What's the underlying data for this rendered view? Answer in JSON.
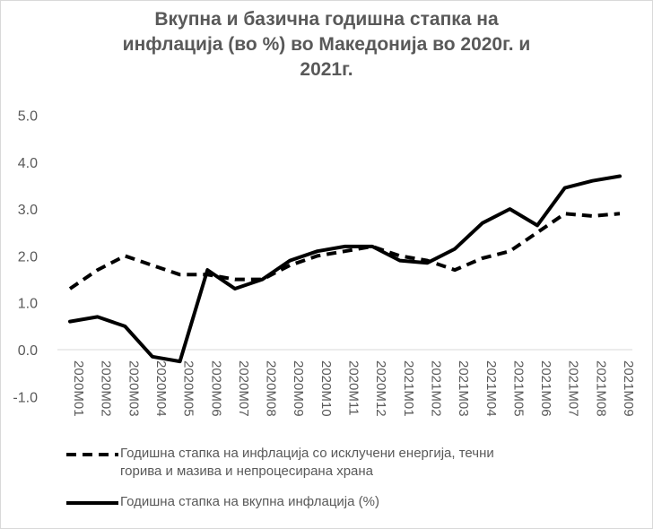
{
  "chart_data": {
    "type": "line",
    "title": [
      "Вкупна и базична годишна стапка на",
      "инфлација (во %)  во Македонија во 2020г. и",
      "2021г."
    ],
    "xlabel": "",
    "ylabel": "",
    "ylim": [
      -1.0,
      5.0
    ],
    "yticks": [
      "5.0",
      "4.0",
      "3.0",
      "2.0",
      "1.0",
      "0.0",
      "-1.0"
    ],
    "ytick_values": [
      5,
      4,
      3,
      2,
      1,
      0,
      -1
    ],
    "grid": false,
    "legend_position": "bottom",
    "categories": [
      "2020M01",
      "2020M02",
      "2020M03",
      "2020M04",
      "2020M05",
      "2020M06",
      "2020M07",
      "2020M08",
      "2020M09",
      "2020M10",
      "2020M11",
      "2020M12",
      "2021M01",
      "2021M02",
      "2021M03",
      "2021M04",
      "2021M05",
      "2021M06",
      "2021M07",
      "2021M08",
      "2021M09"
    ],
    "series": [
      {
        "name": "Годишна стапка на инфлација со исклучени енергија, течни горива и мазива и непроцесирана храна",
        "name_lines": [
          "Годишна стапка на инфлација со исклучени енергија, течни",
          "горива и мазива и непроцесирана храна"
        ],
        "style": "dashed",
        "color": "#000000",
        "values": [
          1.3,
          1.7,
          2.0,
          1.8,
          1.6,
          1.6,
          1.5,
          1.5,
          1.8,
          2.0,
          2.1,
          2.2,
          2.0,
          1.9,
          1.7,
          1.95,
          2.1,
          2.5,
          2.9,
          2.85,
          2.9
        ]
      },
      {
        "name": "Годишна стапка на вкупна инфлација (%)",
        "name_lines": [
          "Годишна стапка на вкупна инфлација (%)"
        ],
        "style": "solid",
        "color": "#000000",
        "values": [
          0.6,
          0.7,
          0.5,
          -0.15,
          -0.25,
          1.7,
          1.3,
          1.5,
          1.9,
          2.1,
          2.2,
          2.2,
          1.9,
          1.85,
          2.15,
          2.7,
          3.0,
          2.65,
          3.45,
          3.6,
          3.7
        ]
      }
    ]
  }
}
